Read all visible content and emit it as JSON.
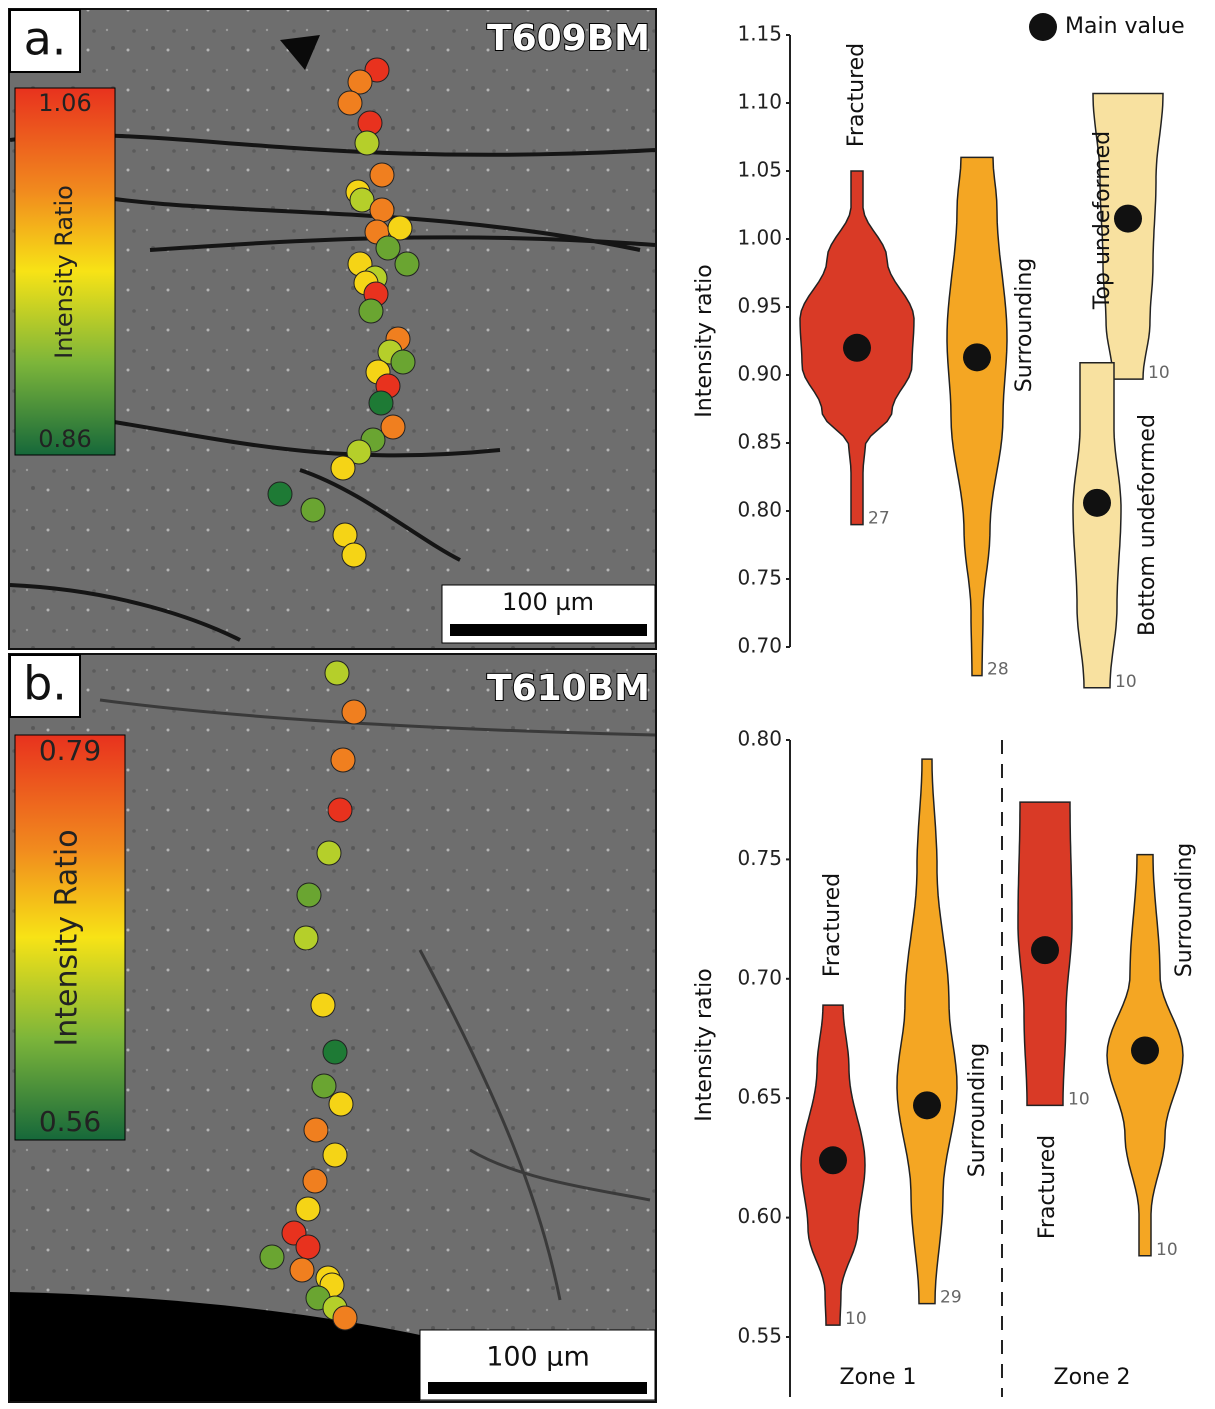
{
  "panels": [
    {
      "label": "a.",
      "sample": "T609BM",
      "colorbar": {
        "title": "Intensity Ratio",
        "max": 1.06,
        "min": 0.86
      },
      "scale_bar": "100 µm"
    },
    {
      "label": "b.",
      "sample": "T610BM",
      "colorbar": {
        "title": "Intensity Ratio",
        "max": 0.79,
        "min": 0.56
      },
      "scale_bar": "100 µm"
    }
  ],
  "chart_data": [
    {
      "type": "violin",
      "y_label": "Intensity ratio",
      "legend": "Main value",
      "ylim": [
        0.7,
        1.15
      ],
      "yticks": [
        {
          "value": 0.7,
          "label": "0.70"
        },
        0.75,
        {
          "value": 0.8,
          "label": "0.80"
        },
        0.85,
        {
          "value": 0.9,
          "label": "0.90"
        },
        0.95,
        {
          "value": 1,
          "label": "1.00"
        },
        1.05,
        {
          "value": 1.1,
          "label": "1.10"
        },
        1.15
      ],
      "groups": [
        {
          "violins": [
            {
              "name": "Fractured",
              "color": "#d93a26",
              "max": 1.05,
              "min": 0.79,
              "main": 0.92,
              "n": 27
            },
            {
              "name": "Surrounding",
              "color": "#f4a623",
              "max": 1.06,
              "min": 0.679,
              "main": 0.913,
              "n": 28
            },
            {
              "name": "Top undeformed",
              "color": "#f8e1a0",
              "max": 1.107,
              "min": 0.897,
              "main": 1.015,
              "n": 10
            },
            {
              "name": "Bottom undeformed",
              "color": "#f8e1a0",
              "max": 0.909,
              "min": 0.67,
              "main": 0.806,
              "n": 10
            }
          ]
        }
      ]
    },
    {
      "type": "violin",
      "y_label": "Intensity ratio",
      "ylim": [
        0.55,
        0.8
      ],
      "yticks": [
        0.55,
        {
          "value": 0.6,
          "label": "0.60"
        },
        0.65,
        {
          "value": 0.7,
          "label": "0.70"
        },
        0.75,
        {
          "value": 0.8,
          "label": "0.80"
        }
      ],
      "groups": [
        {
          "name": "Zone 1",
          "violins": [
            {
              "name": "Fractured",
              "color": "#d93a26",
              "max": 0.689,
              "min": 0.555,
              "main": 0.624,
              "n": 10
            },
            {
              "name": "Surrounding",
              "color": "#f4a623",
              "max": 0.792,
              "min": 0.564,
              "main": 0.647,
              "n": 29
            }
          ]
        },
        {
          "name": "Zone 2",
          "violins": [
            {
              "name": "Fractured",
              "color": "#d93a26",
              "max": 0.774,
              "min": 0.647,
              "main": 0.712,
              "n": 10
            },
            {
              "name": "Surrounding",
              "color": "#f4a623",
              "max": 0.752,
              "min": 0.584,
              "main": 0.67,
              "n": 10
            }
          ]
        }
      ]
    }
  ]
}
